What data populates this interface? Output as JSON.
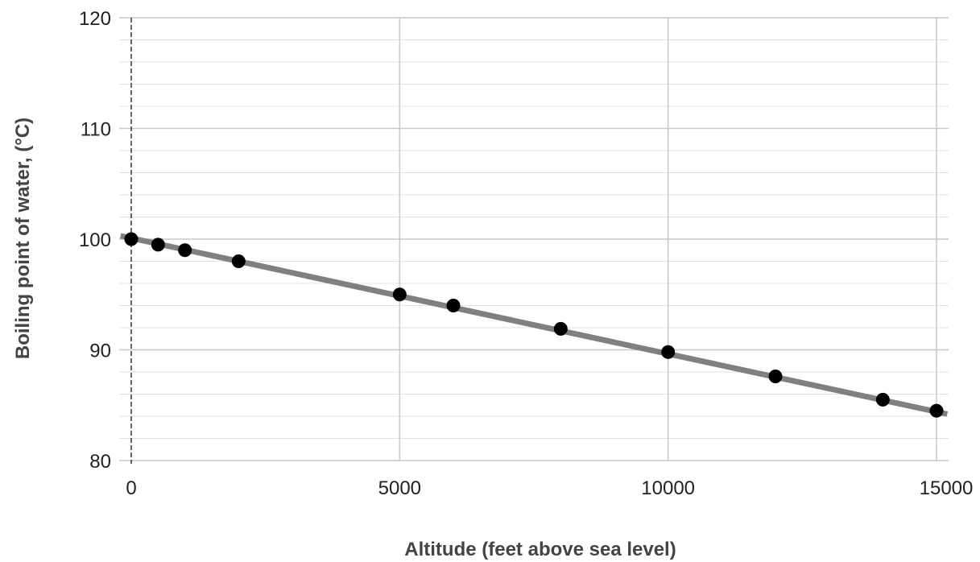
{
  "chart_data": {
    "type": "scatter",
    "title": "",
    "xlabel": "Altitude (feet above sea level)",
    "ylabel": "Boiling point of water, (°C)",
    "xlim": [
      0,
      15000
    ],
    "ylim": [
      80,
      120
    ],
    "x_ticks": [
      "0",
      "5000",
      "10000",
      "15000"
    ],
    "y_ticks": [
      "80",
      "90",
      "100",
      "110",
      "120"
    ],
    "grid": true,
    "series": [
      {
        "points": [
          {
            "x": 0,
            "y": 100
          },
          {
            "x": 500,
            "y": 99.5
          },
          {
            "x": 1000,
            "y": 99
          },
          {
            "x": 2000,
            "y": 98
          },
          {
            "x": 5000,
            "y": 95
          },
          {
            "x": 6000,
            "y": 94
          },
          {
            "x": 8000,
            "y": 91.9
          },
          {
            "x": 10000,
            "y": 89.8
          },
          {
            "x": 12000,
            "y": 87.6
          },
          {
            "x": 14000,
            "y": 85.5
          },
          {
            "x": 15000,
            "y": 84.5
          }
        ]
      }
    ],
    "trendline": {
      "x": [
        -200,
        15200
      ],
      "y": [
        100.3,
        84.2
      ]
    },
    "colors": {
      "points": "#000000",
      "trendline": "#808080",
      "grid": "#d4d4d4"
    }
  }
}
